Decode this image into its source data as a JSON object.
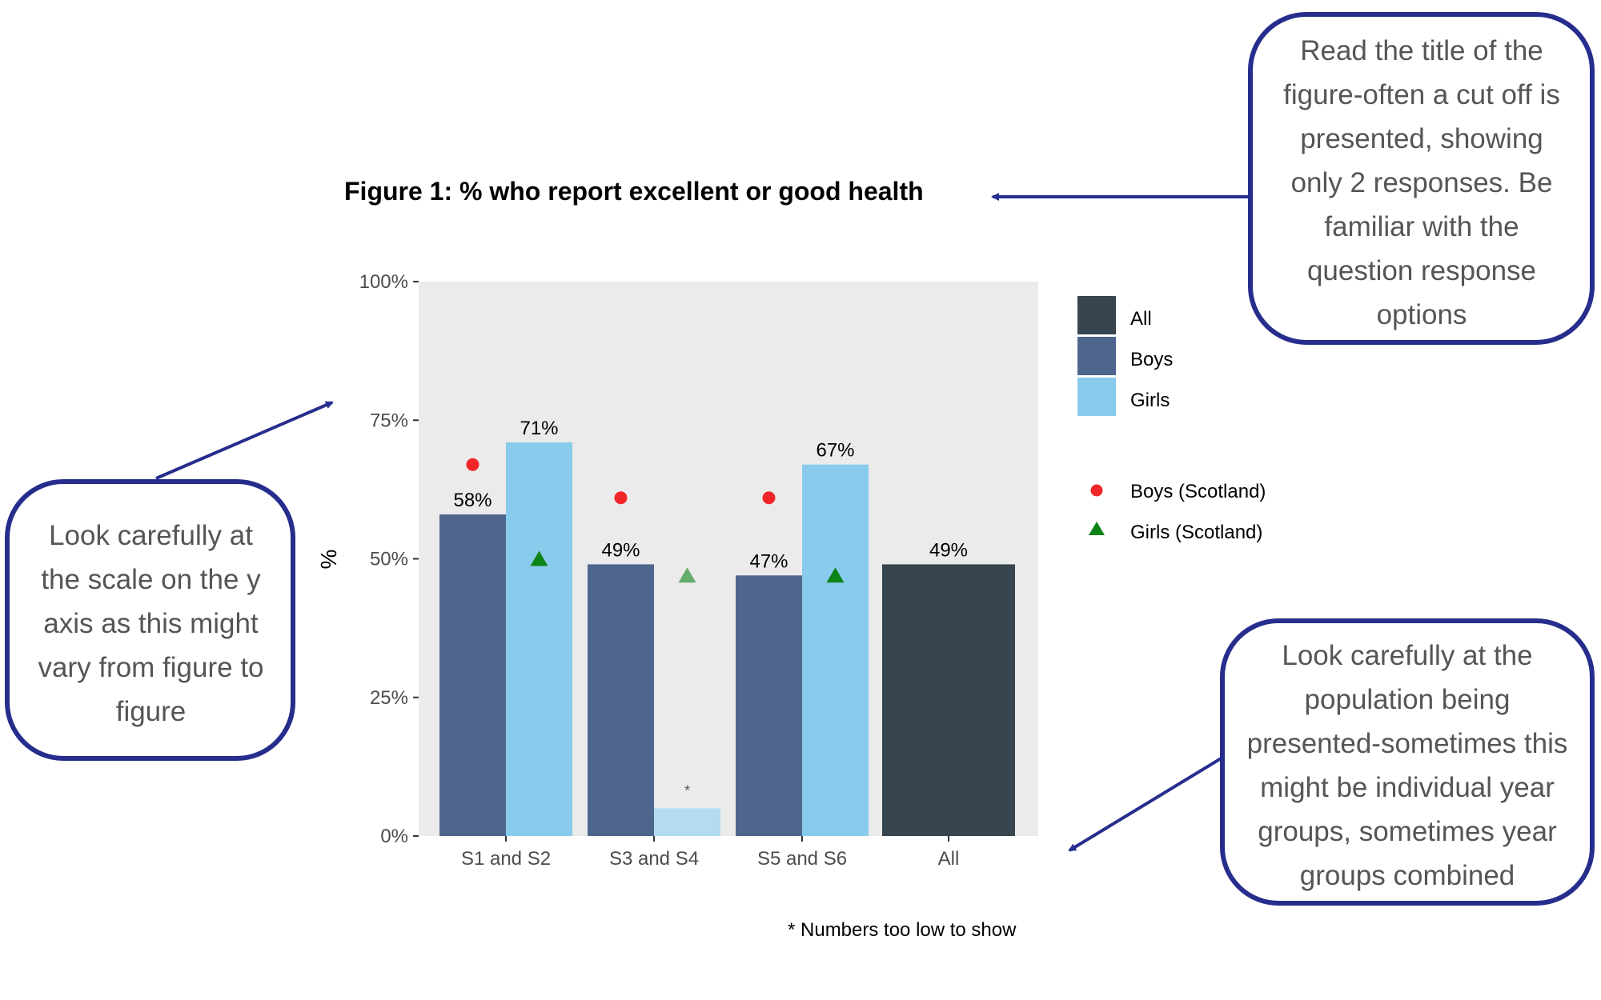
{
  "title": "Figure 1: % who report excellent or good health",
  "footnote": "* Numbers too low to show",
  "colors": {
    "all": "#36454f",
    "boys": "#4e668e",
    "girls": "#89cbec",
    "girls_suppressed": "#b3dcf1",
    "boys_scotland": "#f0262a",
    "girls_scotland": "#0d8417",
    "panel_bg": "#ebebeb",
    "callout_border": "#262d8c",
    "arrow": "#262d8c"
  },
  "chart_data": {
    "type": "bar",
    "title": "Figure 1: % who report excellent or good health",
    "ylabel": "%",
    "ylim": [
      0,
      100
    ],
    "yticks": [
      "0%",
      "25%",
      "50%",
      "75%",
      "100%"
    ],
    "categories": [
      "S1 and S2",
      "S3 and S4",
      "S5 and S6",
      "All"
    ],
    "series": [
      {
        "name": "All",
        "values": [
          null,
          null,
          null,
          49
        ],
        "labels": [
          "",
          "",
          "",
          "49%"
        ]
      },
      {
        "name": "Boys",
        "values": [
          58,
          49,
          47,
          null
        ],
        "labels": [
          "58%",
          "49%",
          "47%",
          ""
        ]
      },
      {
        "name": "Girls",
        "values": [
          71,
          5,
          67,
          null
        ],
        "labels": [
          "71%",
          "*",
          "67%",
          ""
        ],
        "suppressed": [
          false,
          true,
          false,
          false
        ]
      }
    ],
    "markers": [
      {
        "name": "Boys (Scotland)",
        "shape": "circle",
        "values": [
          67,
          61,
          61,
          null
        ]
      },
      {
        "name": "Girls (Scotland)",
        "shape": "triangle",
        "values": [
          50,
          47,
          47,
          null
        ]
      }
    ],
    "legend_position": "right",
    "grid": false
  },
  "callouts": {
    "title_note": "Read the title of the figure-often a cut off is presented, showing only 2 responses. Be familiar with the question response options",
    "scale_note": "Look carefully at the scale on the y axis as this might vary from figure to figure",
    "population_note": "Look carefully at the population being presented-sometimes this might be individual year groups, sometimes year groups combined"
  }
}
